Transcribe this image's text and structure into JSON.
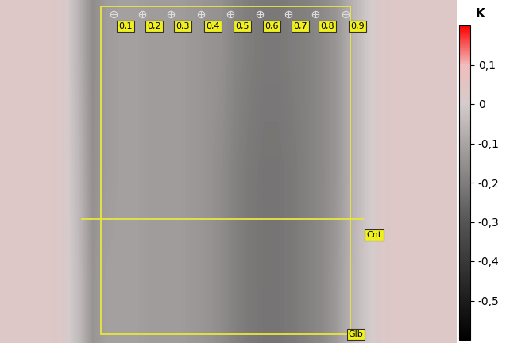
{
  "chart_data": {
    "type": "heatmap",
    "cells": [
      [
        0.03,
        0.03,
        0.03,
        0.03,
        0.02,
        -0.06,
        -0.16,
        -0.12,
        -0.11,
        -0.11,
        -0.12,
        -0.12,
        -0.12,
        -0.13,
        -0.14,
        -0.15,
        -0.18,
        -0.2,
        -0.21,
        -0.21,
        -0.2,
        -0.19,
        -0.17,
        -0.14,
        -0.08,
        -0.02,
        0.02,
        0.03,
        0.03,
        0.03,
        0.03,
        0.03
      ],
      [
        0.03,
        0.03,
        0.03,
        0.03,
        0.02,
        -0.05,
        -0.15,
        -0.12,
        -0.11,
        -0.11,
        -0.12,
        -0.12,
        -0.12,
        -0.13,
        -0.14,
        -0.16,
        -0.19,
        -0.21,
        -0.22,
        -0.22,
        -0.21,
        -0.19,
        -0.17,
        -0.14,
        -0.08,
        -0.02,
        0.02,
        0.03,
        0.03,
        0.03,
        0.03,
        0.03
      ],
      [
        0.03,
        0.03,
        0.03,
        0.03,
        0.02,
        -0.04,
        -0.14,
        -0.11,
        -0.11,
        -0.11,
        -0.12,
        -0.12,
        -0.12,
        -0.13,
        -0.14,
        -0.16,
        -0.19,
        -0.21,
        -0.22,
        -0.22,
        -0.21,
        -0.19,
        -0.17,
        -0.13,
        -0.07,
        -0.02,
        0.02,
        0.03,
        0.03,
        0.03,
        0.03,
        0.03
      ]
    ],
    "colorbar": {
      "label": "K",
      "range": [
        -0.6,
        0.2
      ],
      "ticks": [
        {
          "value": 0.1,
          "label": "0,1"
        },
        0,
        {
          "value": -0.1,
          "label": "-0,1"
        },
        {
          "value": -0.2,
          "label": "-0,2"
        },
        {
          "value": -0.3,
          "label": "-0,3"
        },
        {
          "value": -0.4,
          "label": "-0,4"
        },
        {
          "value": -0.5,
          "label": "-0,5"
        }
      ]
    },
    "annotations": {
      "points": [
        "0,1",
        "0,2",
        "0,3",
        "0,4",
        "0,5",
        "0,6",
        "0,7",
        "0,8",
        "0,9"
      ],
      "line": "Cnt",
      "area": "Glb"
    }
  }
}
